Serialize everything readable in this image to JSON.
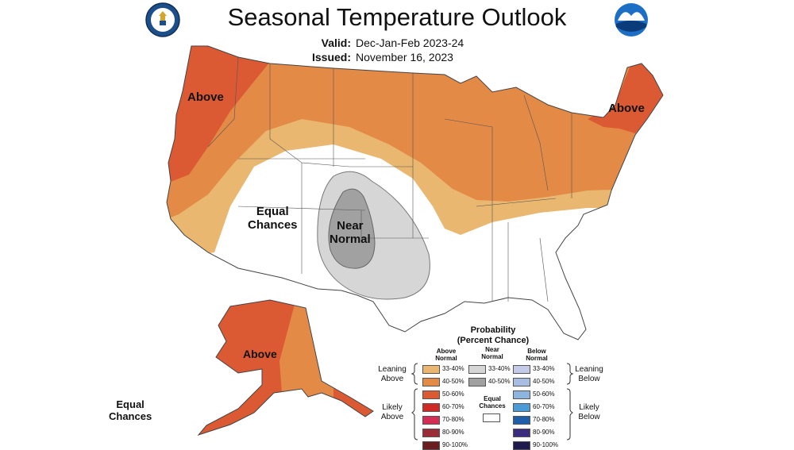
{
  "header": {
    "title": "Seasonal Temperature Outlook",
    "valid_label": "Valid:",
    "valid_value": "Dec-Jan-Feb 2023-24",
    "issued_label": "Issued:",
    "issued_value": "November 16, 2023"
  },
  "logos": {
    "left": "commerce-seal",
    "right_text": "NOAA"
  },
  "map_labels": {
    "above_west": "Above",
    "above_east": "Above",
    "equal_chances_line1": "Equal",
    "equal_chances_line2": "Chances",
    "near_normal_line1": "Near",
    "near_normal_line2": "Normal",
    "above_alaska": "Above",
    "hawaii_ec_line1": "Equal",
    "hawaii_ec_line2": "Chances"
  },
  "legend": {
    "title_line1": "Probability",
    "title_line2": "(Percent Chance)",
    "above_header_1": "Above",
    "above_header_2": "Normal",
    "near_header_1": "Near",
    "near_header_2": "Normal",
    "below_header_1": "Below",
    "below_header_2": "Normal",
    "leaning_above_1": "Leaning",
    "leaning_above_2": "Above",
    "likely_above_1": "Likely",
    "likely_above_2": "Above",
    "leaning_below_1": "Leaning",
    "leaning_below_2": "Below",
    "likely_below_1": "Likely",
    "likely_below_2": "Below",
    "equal_chances_1": "Equal",
    "equal_chances_2": "Chances",
    "above_rows": [
      {
        "label": "33-40%",
        "color": "#e9b770"
      },
      {
        "label": "40-50%",
        "color": "#e48a47"
      },
      {
        "label": "50-60%",
        "color": "#dc5a33"
      },
      {
        "label": "60-70%",
        "color": "#cf2a26"
      },
      {
        "label": "70-80%",
        "color": "#d42e57"
      },
      {
        "label": "80-90%",
        "color": "#9c2c38"
      },
      {
        "label": "90-100%",
        "color": "#6b1d20"
      }
    ],
    "near_rows": [
      {
        "label": "33-40%",
        "color": "#d6d6d6"
      },
      {
        "label": "40-50%",
        "color": "#a1a1a1"
      }
    ],
    "below_rows": [
      {
        "label": "33-40%",
        "color": "#c3cbe8"
      },
      {
        "label": "40-50%",
        "color": "#a7bde2"
      },
      {
        "label": "50-60%",
        "color": "#8eb5de"
      },
      {
        "label": "60-70%",
        "color": "#4b9cd6"
      },
      {
        "label": "70-80%",
        "color": "#1f5ea8"
      },
      {
        "label": "80-90%",
        "color": "#3b2c7f"
      },
      {
        "label": "90-100%",
        "color": "#1f1a4d"
      }
    ]
  }
}
